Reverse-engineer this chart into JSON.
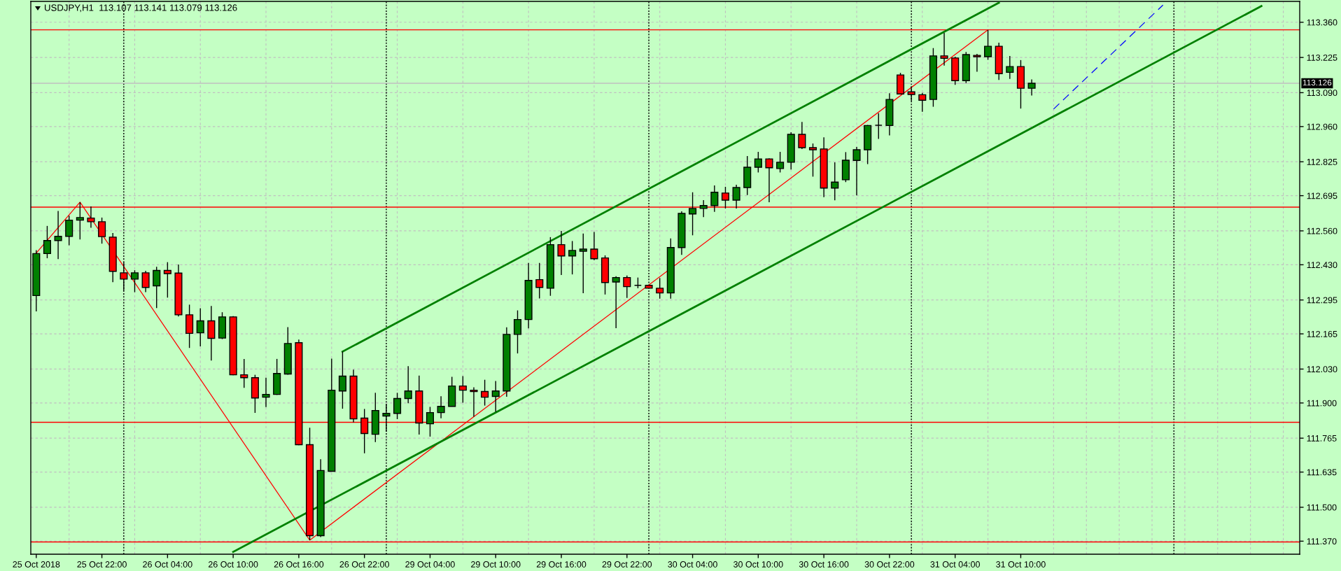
{
  "chart_data": {
    "type": "candlestick",
    "title": "USDJPY,H1  113.107 113.141 113.079 113.126",
    "categories": [
      "25 Oct 2018",
      null,
      null,
      null,
      null,
      null,
      "25 Oct 22:00",
      null,
      null,
      null,
      null,
      null,
      "26 Oct 04:00",
      null,
      null,
      null,
      null,
      null,
      "26 Oct 10:00",
      null,
      null,
      null,
      null,
      null,
      "26 Oct 16:00",
      null,
      null,
      null,
      null,
      null,
      "26 Oct 22:00",
      null,
      null,
      null,
      null,
      null,
      "29 Oct 04:00",
      null,
      null,
      null,
      null,
      null,
      "29 Oct 10:00",
      null,
      null,
      null,
      null,
      null,
      "29 Oct 16:00",
      null,
      null,
      null,
      null,
      null,
      "29 Oct 22:00",
      null,
      null,
      null,
      null,
      null,
      "30 Oct 04:00",
      null,
      null,
      null,
      null,
      null,
      "30 Oct 10:00",
      null,
      null,
      null,
      null,
      null,
      "30 Oct 16:00",
      null,
      null,
      null,
      null,
      null,
      "30 Oct 22:00",
      null,
      null,
      null,
      null,
      null,
      "31 Oct 04:00",
      null,
      null,
      null,
      null,
      null,
      "31 Oct 10:00",
      null,
      null,
      null,
      null,
      null,
      null,
      null,
      null,
      null,
      null,
      null,
      null,
      null,
      null,
      null,
      null,
      null,
      null,
      null,
      null,
      null,
      null,
      null,
      null,
      null
    ],
    "ohlc": [
      [
        112.312,
        112.486,
        112.251,
        112.473
      ],
      [
        112.473,
        112.579,
        112.455,
        112.523
      ],
      [
        112.523,
        112.636,
        112.452,
        112.539
      ],
      [
        112.539,
        112.618,
        112.505,
        112.601
      ],
      [
        112.601,
        112.67,
        112.527,
        112.611
      ],
      [
        112.609,
        112.654,
        112.572,
        112.595
      ],
      [
        112.595,
        112.611,
        112.511,
        112.538
      ],
      [
        112.536,
        112.552,
        112.363,
        112.405
      ],
      [
        112.399,
        112.44,
        112.331,
        112.375
      ],
      [
        112.375,
        112.409,
        112.325,
        112.399
      ],
      [
        112.399,
        112.407,
        112.325,
        112.343
      ],
      [
        112.349,
        112.422,
        112.264,
        112.408
      ],
      [
        112.408,
        112.44,
        112.304,
        112.396
      ],
      [
        112.398,
        112.431,
        112.232,
        112.238
      ],
      [
        112.238,
        112.277,
        112.111,
        112.167
      ],
      [
        112.169,
        112.263,
        112.117,
        112.215
      ],
      [
        112.215,
        112.272,
        112.063,
        112.148
      ],
      [
        112.149,
        112.248,
        112.145,
        112.23
      ],
      [
        112.23,
        112.233,
        112.006,
        112.008
      ],
      [
        112.008,
        112.069,
        111.958,
        111.997
      ],
      [
        111.997,
        112.008,
        111.862,
        111.919
      ],
      [
        111.922,
        111.997,
        111.884,
        111.933
      ],
      [
        111.933,
        112.069,
        111.931,
        112.013
      ],
      [
        112.011,
        112.191,
        112.008,
        112.128
      ],
      [
        112.131,
        112.143,
        111.738,
        111.74
      ],
      [
        111.74,
        111.805,
        111.374,
        111.391
      ],
      [
        111.391,
        111.684,
        111.386,
        111.641
      ],
      [
        111.638,
        112.07,
        111.638,
        111.949
      ],
      [
        111.946,
        112.097,
        111.878,
        112.003
      ],
      [
        112.003,
        112.028,
        111.826,
        111.839
      ],
      [
        111.842,
        111.877,
        111.707,
        111.783
      ],
      [
        111.78,
        111.939,
        111.75,
        111.871
      ],
      [
        111.85,
        111.896,
        111.79,
        111.86
      ],
      [
        111.86,
        111.939,
        111.838,
        111.917
      ],
      [
        111.917,
        112.041,
        111.899,
        111.946
      ],
      [
        111.946,
        112.005,
        111.779,
        111.823
      ],
      [
        111.82,
        111.885,
        111.771,
        111.863
      ],
      [
        111.863,
        111.926,
        111.841,
        111.887
      ],
      [
        111.887,
        112.0,
        111.887,
        111.965
      ],
      [
        111.965,
        112.003,
        111.901,
        111.949
      ],
      [
        111.949,
        111.96,
        111.847,
        111.944
      ],
      [
        111.944,
        111.989,
        111.89,
        111.922
      ],
      [
        111.925,
        111.984,
        111.866,
        111.946
      ],
      [
        111.946,
        112.19,
        111.924,
        112.163
      ],
      [
        112.163,
        112.255,
        112.09,
        112.22
      ],
      [
        112.22,
        112.437,
        112.186,
        112.37
      ],
      [
        112.373,
        112.437,
        112.301,
        112.343
      ],
      [
        112.34,
        112.536,
        112.311,
        112.507
      ],
      [
        112.507,
        112.56,
        112.391,
        112.464
      ],
      [
        112.464,
        112.521,
        112.393,
        112.485
      ],
      [
        112.482,
        112.55,
        112.321,
        112.49
      ],
      [
        112.49,
        112.556,
        112.448,
        112.453
      ],
      [
        112.456,
        112.466,
        112.316,
        112.362
      ],
      [
        112.364,
        112.386,
        112.187,
        112.381
      ],
      [
        112.381,
        112.389,
        112.303,
        112.346
      ],
      [
        112.351,
        112.381,
        112.34,
        112.351
      ],
      [
        112.351,
        112.351,
        112.34,
        112.34
      ],
      [
        112.34,
        112.379,
        112.3,
        112.322
      ],
      [
        112.322,
        112.531,
        112.3,
        112.496
      ],
      [
        112.496,
        112.635,
        112.468,
        112.627
      ],
      [
        112.625,
        112.708,
        112.543,
        112.646
      ],
      [
        112.646,
        112.678,
        112.613,
        112.657
      ],
      [
        112.657,
        112.734,
        112.633,
        112.708
      ],
      [
        112.705,
        112.729,
        112.646,
        112.678
      ],
      [
        112.678,
        112.737,
        112.646,
        112.726
      ],
      [
        112.726,
        112.847,
        112.697,
        112.804
      ],
      [
        112.804,
        112.863,
        112.784,
        112.836
      ],
      [
        112.836,
        112.838,
        112.67,
        112.802
      ],
      [
        112.799,
        112.863,
        112.784,
        112.823
      ],
      [
        112.823,
        112.938,
        112.795,
        112.93
      ],
      [
        112.93,
        112.978,
        112.874,
        112.879
      ],
      [
        112.879,
        112.895,
        112.768,
        112.871
      ],
      [
        112.874,
        112.919,
        112.689,
        112.724
      ],
      [
        112.724,
        112.823,
        112.677,
        112.747
      ],
      [
        112.756,
        112.862,
        112.747,
        112.831
      ],
      [
        112.83,
        112.882,
        112.696,
        112.871
      ],
      [
        112.871,
        112.966,
        112.816,
        112.964
      ],
      [
        112.965,
        113.011,
        112.913,
        112.965
      ],
      [
        112.964,
        113.088,
        112.926,
        113.064
      ],
      [
        113.158,
        113.166,
        113.083,
        113.085
      ],
      [
        113.093,
        113.113,
        113.058,
        113.083
      ],
      [
        113.082,
        113.089,
        113.017,
        113.061
      ],
      [
        113.064,
        113.261,
        113.036,
        113.231
      ],
      [
        113.231,
        113.319,
        113.194,
        113.222
      ],
      [
        113.223,
        113.228,
        113.12,
        113.136
      ],
      [
        113.136,
        113.246,
        113.127,
        113.236
      ],
      [
        113.233,
        113.239,
        113.17,
        113.228
      ],
      [
        113.228,
        113.331,
        113.216,
        113.268
      ],
      [
        113.268,
        113.282,
        113.139,
        113.163
      ],
      [
        113.168,
        113.231,
        113.143,
        113.19
      ],
      [
        113.19,
        113.215,
        113.029,
        113.107
      ],
      [
        113.107,
        113.141,
        113.079,
        113.126
      ],
      null,
      null,
      null,
      null,
      null,
      null,
      null,
      null,
      null,
      null,
      null,
      null,
      null,
      null,
      null,
      null,
      null,
      null,
      null,
      null,
      null,
      null,
      null,
      null
    ],
    "colors": [
      "#008000",
      "#008000",
      "#008000",
      "#008000",
      "#008000",
      "#ff0000",
      "#ff0000",
      "#ff0000",
      "#ff0000",
      "#008000",
      "#ff0000",
      "#008000",
      "#ff0000",
      "#ff0000",
      "#ff0000",
      "#008000",
      "#ff0000",
      "#008000",
      "#ff0000",
      "#ff0000",
      "#ff0000",
      "#008000",
      "#008000",
      "#008000",
      "#ff0000",
      "#ff0000",
      "#008000",
      "#008000",
      "#008000",
      "#ff0000",
      "#ff0000",
      "#008000",
      "#008000",
      "#008000",
      "#008000",
      "#ff0000",
      "#008000",
      "#008000",
      "#008000",
      "#ff0000",
      "#ff0000",
      "#ff0000",
      "#008000",
      "#008000",
      "#008000",
      "#008000",
      "#ff0000",
      "#008000",
      "#ff0000",
      "#008000",
      "#008000",
      "#ff0000",
      "#ff0000",
      "#008000",
      "#ff0000",
      "#000000",
      "#ff0000",
      "#ff0000",
      "#008000",
      "#008000",
      "#008000",
      "#008000",
      "#008000",
      "#ff0000",
      "#008000",
      "#008000",
      "#008000",
      "#ff0000",
      "#008000",
      "#008000",
      "#ff0000",
      "#ff0000",
      "#ff0000",
      "#008000",
      "#008000",
      "#008000",
      "#008000",
      "#000000",
      "#008000",
      "#ff0000",
      "#ff0000",
      "#ff0000",
      "#008000",
      "#ff0000",
      "#ff0000",
      "#008000",
      "#ff0000",
      "#008000",
      "#ff0000",
      "#008000",
      "#ff0000",
      "#008000",
      null,
      null,
      null,
      null,
      null,
      null,
      null,
      null,
      null,
      null,
      null,
      null,
      null,
      null,
      null,
      null,
      null,
      null,
      null,
      null,
      null,
      null,
      null,
      null
    ],
    "series": [
      {
        "type": "line",
        "color": "#ff0000",
        "line_style": "solid",
        "values": [
          112.475,
          null,
          null,
          null,
          112.67,
          null,
          null,
          null,
          null,
          null,
          null,
          null,
          null,
          null,
          null,
          null,
          null,
          null,
          null,
          null,
          null,
          null,
          null,
          null,
          null,
          111.374,
          null,
          null,
          null,
          null,
          null,
          null,
          null,
          null,
          null,
          null,
          null,
          null,
          null,
          null,
          null,
          null,
          null,
          null,
          null,
          null,
          null,
          null,
          null,
          null,
          null,
          null,
          null,
          null,
          null,
          null,
          null,
          null,
          null,
          null,
          null,
          null,
          null,
          null,
          null,
          null,
          null,
          null,
          null,
          null,
          null,
          null,
          null,
          null,
          null,
          null,
          null,
          null,
          null,
          null,
          null,
          null,
          null,
          null,
          null,
          null,
          null,
          113.331,
          null,
          null,
          null,
          null,
          null,
          null,
          null,
          null,
          null,
          null,
          null,
          null,
          null,
          null,
          null,
          null,
          null,
          null,
          null,
          null,
          null,
          null,
          null,
          null,
          null,
          null,
          null,
          null
        ]
      },
      {
        "type": "line",
        "color": "#008000",
        "line_style": "solid",
        "values": [
          null,
          null,
          null,
          null,
          null,
          null,
          null,
          null,
          null,
          null,
          null,
          null,
          null,
          null,
          null,
          null,
          null,
          null,
          null,
          null,
          null,
          null,
          null,
          null,
          null,
          null,
          null,
          null,
          112.097,
          null,
          null,
          null,
          null,
          null,
          null,
          null,
          null,
          null,
          null,
          null,
          null,
          null,
          null,
          null,
          null,
          null,
          null,
          null,
          null,
          null,
          null,
          null,
          null,
          null,
          null,
          null,
          null,
          null,
          null,
          null,
          null,
          null,
          null,
          null,
          null,
          null,
          null,
          null,
          null,
          null,
          null,
          null,
          null,
          null,
          null,
          null,
          null,
          null,
          null,
          null,
          null,
          null,
          null,
          null,
          null,
          null,
          null,
          null,
          113.435,
          null,
          null,
          null,
          null,
          null,
          null,
          null,
          null,
          null,
          null,
          null,
          null,
          null,
          null,
          null,
          null,
          null,
          null,
          null,
          null,
          null,
          null,
          null,
          null,
          null,
          null,
          null
        ]
      },
      {
        "type": "line",
        "color": "#008000",
        "line_style": "solid",
        "values": [
          null,
          null,
          null,
          null,
          null,
          null,
          null,
          null,
          null,
          null,
          null,
          null,
          null,
          null,
          null,
          null,
          null,
          null,
          111.329,
          null,
          null,
          null,
          null,
          null,
          null,
          null,
          null,
          null,
          null,
          null,
          null,
          null,
          null,
          null,
          null,
          null,
          null,
          null,
          null,
          null,
          null,
          null,
          null,
          null,
          null,
          null,
          null,
          null,
          null,
          null,
          null,
          null,
          null,
          null,
          null,
          null,
          null,
          null,
          null,
          null,
          null,
          null,
          null,
          null,
          null,
          null,
          null,
          null,
          null,
          null,
          null,
          null,
          null,
          null,
          null,
          null,
          null,
          null,
          null,
          null,
          null,
          null,
          null,
          null,
          null,
          null,
          null,
          null,
          null,
          null,
          null,
          null,
          null,
          null,
          null,
          null,
          null,
          null,
          null,
          null,
          null,
          null,
          null,
          null,
          null,
          null,
          null,
          null,
          null,
          null,
          null,
          null,
          113.422,
          null,
          null,
          null
        ]
      },
      {
        "type": "line",
        "color": "#0000ff",
        "line_style": "dashed",
        "values": [
          null,
          null,
          null,
          null,
          null,
          null,
          null,
          null,
          null,
          null,
          null,
          null,
          null,
          null,
          null,
          null,
          null,
          null,
          null,
          null,
          null,
          null,
          null,
          null,
          null,
          null,
          null,
          null,
          null,
          null,
          null,
          null,
          null,
          null,
          null,
          null,
          null,
          null,
          null,
          null,
          null,
          null,
          null,
          null,
          null,
          null,
          null,
          null,
          null,
          null,
          null,
          null,
          null,
          null,
          null,
          null,
          null,
          null,
          null,
          null,
          null,
          null,
          null,
          null,
          null,
          null,
          null,
          null,
          null,
          null,
          null,
          null,
          null,
          null,
          null,
          null,
          null,
          null,
          null,
          null,
          null,
          null,
          null,
          null,
          null,
          null,
          null,
          null,
          null,
          null,
          null,
          null,
          null,
          113.027,
          null,
          null,
          null,
          null,
          null,
          null,
          null,
          null,
          null,
          113.426,
          null,
          null,
          null,
          null,
          null,
          null,
          null,
          null,
          null,
          null,
          null,
          null
        ]
      }
    ],
    "ylim": [
      111.32,
      113.44
    ],
    "yticks": [
      {
        "value": 113.36,
        "label": "113.360"
      },
      {
        "value": 113.225,
        "label": "113.225"
      },
      {
        "value": 113.09,
        "label": "113.090"
      },
      {
        "value": 112.96,
        "label": "112.960"
      },
      {
        "value": 112.825,
        "label": "112.825"
      },
      {
        "value": 112.695,
        "label": "112.695"
      },
      {
        "value": 112.56,
        "label": "112.560"
      },
      {
        "value": 112.43,
        "label": "112.430"
      },
      {
        "value": 112.295,
        "label": "112.295"
      },
      {
        "value": 112.165,
        "label": "112.165"
      },
      {
        "value": 112.03,
        "label": "112.030"
      },
      {
        "value": 111.9,
        "label": "111.900"
      },
      {
        "value": 111.765,
        "label": "111.765"
      },
      {
        "value": 111.635,
        "label": "111.635"
      },
      {
        "value": 111.5,
        "label": "111.500"
      },
      {
        "value": 111.37,
        "label": "111.370"
      }
    ],
    "grid": true,
    "ref_lines": [
      {
        "axis": "y",
        "value": 113.331,
        "color": "#ff0000"
      },
      {
        "axis": "y",
        "value": 112.651,
        "color": "#ff0000"
      },
      {
        "axis": "y",
        "value": 111.826,
        "color": "#ff0000"
      },
      {
        "axis": "y",
        "value": 111.367,
        "color": "#ff0000"
      },
      {
        "axis": "y",
        "value": 113.126,
        "label": "113.126",
        "color": "#c0c0c0"
      }
    ]
  }
}
